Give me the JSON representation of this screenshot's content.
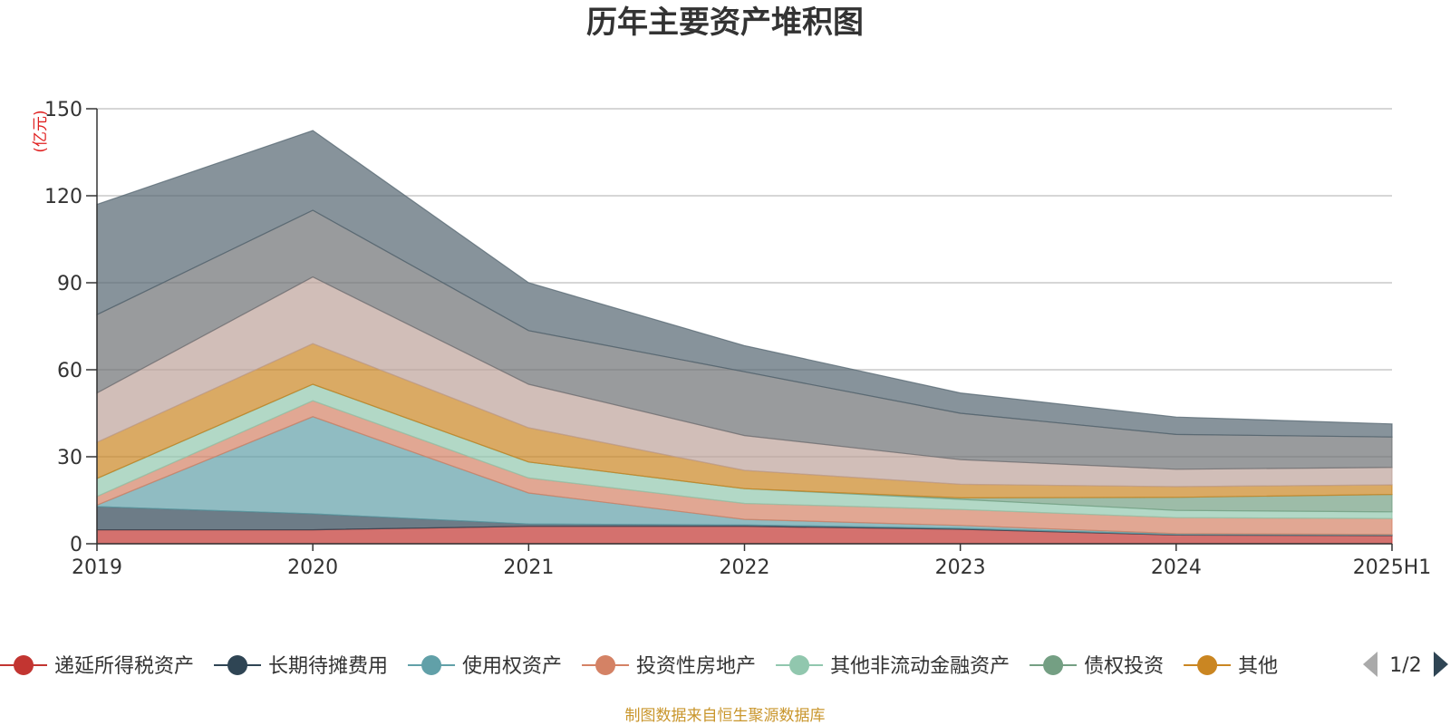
{
  "chart_data": {
    "type": "area",
    "stacked": true,
    "title": "历年主要资产堆积图",
    "unit": "(亿元)",
    "x": [
      "2019",
      "2020",
      "2021",
      "2022",
      "2023",
      "2024",
      "2025H1"
    ],
    "ylim": [
      0,
      150
    ],
    "yticks": [
      0,
      30,
      60,
      90,
      120,
      150
    ],
    "grid": true,
    "series": [
      {
        "name": "递延所得税资产",
        "color": "#c23531",
        "values": [
          4.8,
          4.8,
          6.0,
          6.0,
          5.0,
          3.0,
          2.8
        ]
      },
      {
        "name": "长期待摊费用",
        "color": "#2f4554",
        "values": [
          8.0,
          5.5,
          0.8,
          0.5,
          0.3,
          0.2,
          0.2
        ]
      },
      {
        "name": "使用权资产",
        "color": "#61a0a8",
        "values": [
          0.5,
          33.5,
          10.7,
          1.9,
          1.0,
          0.3,
          0.2
        ]
      },
      {
        "name": "投资性房地产",
        "color": "#d48265",
        "values": [
          3.0,
          5.5,
          5.2,
          5.5,
          5.5,
          5.5,
          5.5
        ]
      },
      {
        "name": "其他非流动金融资产",
        "color": "#91c7ae",
        "values": [
          6.2,
          5.7,
          5.5,
          5.1,
          3.5,
          2.5,
          2.3
        ]
      },
      {
        "name": "债权投资",
        "color": "#749f83",
        "values": [
          0.0,
          0.0,
          0.0,
          0.0,
          0.5,
          4.5,
          6.0
        ]
      },
      {
        "name": "其他",
        "color": "#ca8622",
        "values": [
          12.5,
          14.0,
          11.8,
          6.3,
          4.7,
          3.7,
          3.3
        ]
      },
      {
        "name": "",
        "color": "#bda29a",
        "values": [
          17.0,
          23.0,
          15.0,
          12.0,
          8.5,
          6.0,
          6.0
        ]
      },
      {
        "name": "",
        "color": "#6e7074",
        "values": [
          27.0,
          23.0,
          18.5,
          22.0,
          16.0,
          12.0,
          10.5
        ]
      },
      {
        "name": "",
        "color": "#546570",
        "values": [
          38.0,
          27.5,
          16.5,
          9.0,
          7.0,
          6.0,
          4.5
        ]
      }
    ],
    "legend_page": "1/2",
    "source": "制图数据来自恒生聚源数据库"
  }
}
